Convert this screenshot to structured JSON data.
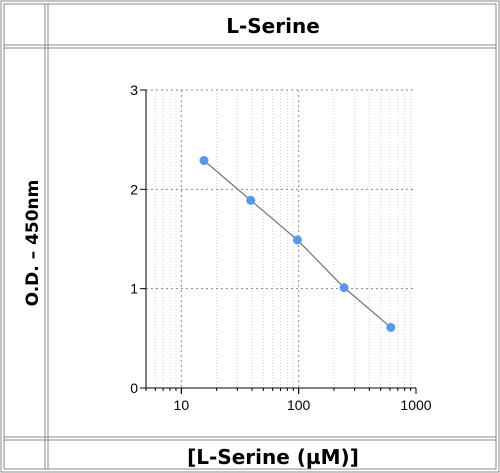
{
  "chart_data": {
    "type": "line",
    "title": "L-Serine",
    "xlabel": "[L-Serine (µM)]",
    "ylabel": "O.D. – 450nm",
    "x_scale": "log",
    "xlim": [
      5,
      1000
    ],
    "ylim": [
      0,
      3
    ],
    "x_ticks": [
      "10",
      "100",
      "1000"
    ],
    "y_ticks": [
      "0",
      "1",
      "2",
      "3"
    ],
    "grid": true,
    "legend": "none",
    "series": [
      {
        "x": [
          15.6,
          39,
          97.6,
          244,
          610
        ],
        "y": [
          2.29,
          1.89,
          1.49,
          1.01,
          0.61
        ]
      }
    ],
    "colors": {
      "marker": "#5599ee",
      "line": "#7a7a7a",
      "grid": "#888888",
      "minor_grid": "#d0d0d0"
    }
  }
}
